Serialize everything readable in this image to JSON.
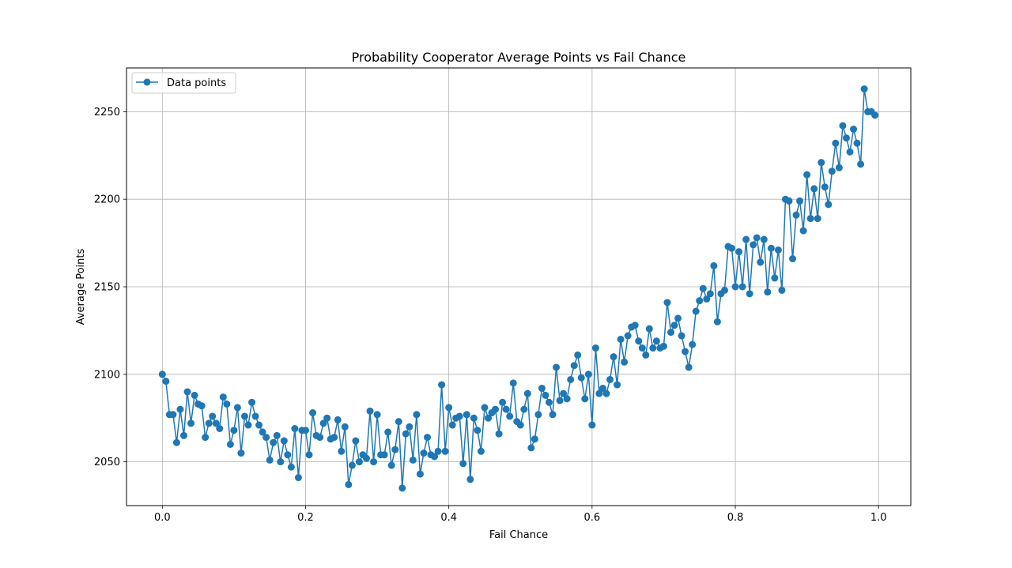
{
  "chart_data": {
    "type": "line",
    "title": "Probability Cooperator Average Points vs Fail Chance",
    "xlabel": "Fail Chance",
    "ylabel": "Average Points",
    "xlim": [
      -0.05,
      1.045
    ],
    "ylim": [
      2025,
      2275
    ],
    "xticks": [
      0.0,
      0.2,
      0.4,
      0.6,
      0.8,
      1.0
    ],
    "xtick_labels": [
      "0.0",
      "0.2",
      "0.4",
      "0.6",
      "0.8",
      "1.0"
    ],
    "yticks": [
      2050,
      2100,
      2150,
      2200,
      2250
    ],
    "ytick_labels": [
      "2050",
      "2100",
      "2150",
      "2200",
      "2250"
    ],
    "grid": true,
    "legend_position": "top-left",
    "marker": "circle",
    "color": "#1f77b4",
    "series": [
      {
        "name": "Data points",
        "x": [
          0.0,
          0.005,
          0.01,
          0.015,
          0.02,
          0.025,
          0.03,
          0.035,
          0.04,
          0.045,
          0.05,
          0.055,
          0.06,
          0.065,
          0.07,
          0.075,
          0.08,
          0.085,
          0.09,
          0.095,
          0.1,
          0.105,
          0.11,
          0.115,
          0.12,
          0.125,
          0.13,
          0.135,
          0.14,
          0.145,
          0.15,
          0.155,
          0.16,
          0.165,
          0.17,
          0.175,
          0.18,
          0.185,
          0.19,
          0.195,
          0.2,
          0.205,
          0.21,
          0.215,
          0.22,
          0.225,
          0.23,
          0.235,
          0.24,
          0.245,
          0.25,
          0.255,
          0.26,
          0.265,
          0.27,
          0.275,
          0.28,
          0.285,
          0.29,
          0.295,
          0.3,
          0.305,
          0.31,
          0.315,
          0.32,
          0.325,
          0.33,
          0.335,
          0.34,
          0.345,
          0.35,
          0.355,
          0.36,
          0.365,
          0.37,
          0.375,
          0.38,
          0.385,
          0.39,
          0.395,
          0.4,
          0.405,
          0.41,
          0.415,
          0.42,
          0.425,
          0.43,
          0.435,
          0.44,
          0.445,
          0.45,
          0.455,
          0.46,
          0.465,
          0.47,
          0.475,
          0.48,
          0.485,
          0.49,
          0.495,
          0.5,
          0.505,
          0.51,
          0.515,
          0.52,
          0.525,
          0.53,
          0.535,
          0.54,
          0.545,
          0.55,
          0.555,
          0.56,
          0.565,
          0.57,
          0.575,
          0.58,
          0.585,
          0.59,
          0.595,
          0.6,
          0.605,
          0.61,
          0.615,
          0.62,
          0.625,
          0.63,
          0.635,
          0.64,
          0.645,
          0.65,
          0.655,
          0.66,
          0.665,
          0.67,
          0.675,
          0.68,
          0.685,
          0.69,
          0.695,
          0.7,
          0.705,
          0.71,
          0.715,
          0.72,
          0.725,
          0.73,
          0.735,
          0.74,
          0.745,
          0.75,
          0.755,
          0.76,
          0.765,
          0.77,
          0.775,
          0.78,
          0.785,
          0.79,
          0.795,
          0.8,
          0.805,
          0.81,
          0.815,
          0.82,
          0.825,
          0.83,
          0.835,
          0.84,
          0.845,
          0.85,
          0.855,
          0.86,
          0.865,
          0.87,
          0.875,
          0.88,
          0.885,
          0.89,
          0.895,
          0.9,
          0.905,
          0.91,
          0.915,
          0.92,
          0.925,
          0.93,
          0.935,
          0.94,
          0.945,
          0.95,
          0.955,
          0.96,
          0.965,
          0.97,
          0.975,
          0.98,
          0.985,
          0.99,
          0.995
        ],
        "values": [
          2100,
          2096,
          2077,
          2077,
          2061,
          2080,
          2065,
          2090,
          2072,
          2088,
          2083,
          2082,
          2064,
          2072,
          2076,
          2072,
          2069,
          2087,
          2083,
          2060,
          2068,
          2081,
          2055,
          2076,
          2071,
          2084,
          2076,
          2071,
          2067,
          2064,
          2051,
          2061,
          2065,
          2050,
          2062,
          2054,
          2047,
          2069,
          2041,
          2068,
          2068,
          2054,
          2078,
          2065,
          2064,
          2072,
          2075,
          2063,
          2064,
          2074,
          2056,
          2070,
          2037,
          2048,
          2062,
          2050,
          2054,
          2052,
          2079,
          2050,
          2077,
          2054,
          2054,
          2067,
          2048,
          2057,
          2073,
          2035,
          2066,
          2070,
          2051,
          2077,
          2043,
          2055,
          2064,
          2054,
          2053,
          2056,
          2094,
          2056,
          2081,
          2071,
          2075,
          2076,
          2049,
          2077,
          2040,
          2075,
          2068,
          2056,
          2081,
          2075,
          2078,
          2080,
          2066,
          2084,
          2080,
          2076,
          2095,
          2073,
          2071,
          2080,
          2089,
          2058,
          2063,
          2077,
          2092,
          2088,
          2084,
          2077,
          2104,
          2085,
          2089,
          2086,
          2097,
          2105,
          2111,
          2098,
          2086,
          2100,
          2071,
          2115,
          2089,
          2092,
          2089,
          2097,
          2110,
          2094,
          2120,
          2107,
          2122,
          2127,
          2128,
          2119,
          2115,
          2111,
          2126,
          2115,
          2119,
          2115,
          2116,
          2141,
          2124,
          2128,
          2132,
          2122,
          2113,
          2104,
          2117,
          2136,
          2142,
          2149,
          2143,
          2146,
          2162,
          2130,
          2146,
          2148,
          2173,
          2172,
          2150,
          2170,
          2150,
          2177,
          2146,
          2174,
          2178,
          2164,
          2177,
          2147,
          2172,
          2155,
          2171,
          2148,
          2200,
          2199,
          2166,
          2191,
          2199,
          2182,
          2214,
          2189,
          2206,
          2189,
          2221,
          2207,
          2197,
          2216,
          2232,
          2218,
          2242,
          2235,
          2227,
          2240,
          2232,
          2220,
          2263,
          2250,
          2250,
          2248
        ]
      }
    ]
  }
}
